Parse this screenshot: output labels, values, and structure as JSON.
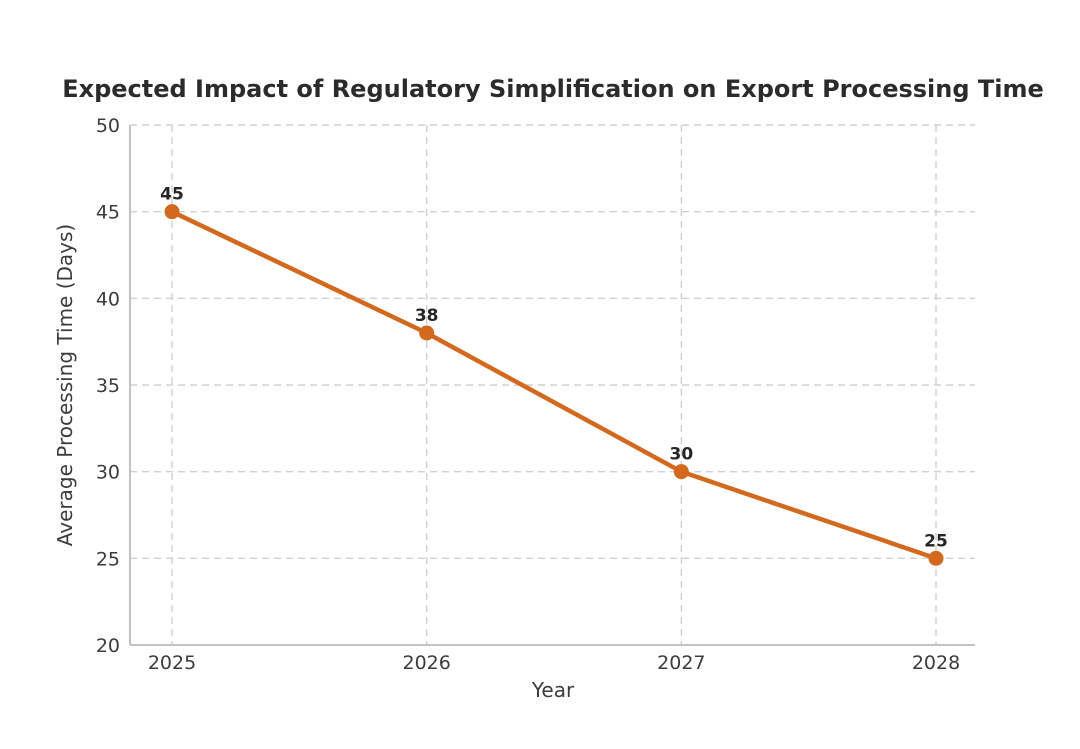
{
  "page": {
    "background": "#ffffff"
  },
  "chart_data": {
    "type": "line",
    "title": "Expected Impact of Regulatory Simplification on Export Processing Time",
    "xlabel": "Year",
    "ylabel": "Average Processing Time (Days)",
    "categories": [
      "2025",
      "2026",
      "2027",
      "2028"
    ],
    "values": [
      45,
      38,
      30,
      25
    ],
    "point_labels": [
      "45",
      "38",
      "30",
      "25"
    ],
    "ylim": [
      20,
      50
    ],
    "yticks": [
      20,
      25,
      30,
      35,
      40,
      45,
      50
    ],
    "grid": {
      "visible": true,
      "style": "dashed",
      "axes": "both"
    },
    "legend_position": "none",
    "marker_shape": "circle",
    "line_color": "#d2691e",
    "title_color": "#2b2b2b",
    "tick_color": "#3c3c3c",
    "axis_label_color": "#3c3c3c",
    "grid_color": "#d0d0d0",
    "spine_color": "#c2c2c2",
    "point_label_color": "#262626"
  }
}
